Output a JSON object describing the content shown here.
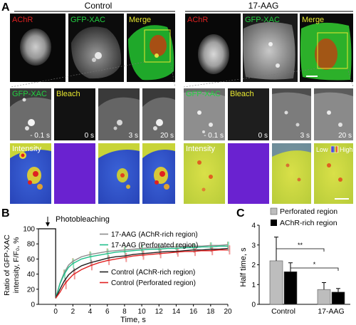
{
  "panel_a": {
    "letter": "A",
    "conditions": [
      "Control",
      "17-AAG"
    ],
    "top_labels": [
      "AChR",
      "GFP-XAC",
      "Merge"
    ],
    "mid_labels": [
      "GFP-XAC",
      "Bleach"
    ],
    "bottom_label": "Intensity",
    "times": [
      "- 0.1 s",
      "0 s",
      "3 s",
      "20 s"
    ],
    "lut_low": "Low",
    "lut_high": "High"
  },
  "panel_b": {
    "letter": "B",
    "annotation": "Photobleaching",
    "chart_data": {
      "type": "line",
      "ylabel_lines": [
        "Ratio of GFP-XAC",
        "intensity, F/F₀, %"
      ],
      "xlabel": "Time, s",
      "xlim": [
        -2,
        20
      ],
      "ylim": [
        0,
        100
      ],
      "xticks": [
        "0",
        "2",
        "4",
        "6",
        "8",
        "10",
        "12",
        "14",
        "16",
        "18",
        "20"
      ],
      "yticks": [
        "0",
        "20",
        "40",
        "60",
        "80",
        "100"
      ],
      "x": [
        0,
        0.5,
        1,
        1.5,
        2,
        3,
        4,
        5,
        6,
        7,
        8,
        9,
        10,
        11,
        12,
        13,
        14,
        15,
        16,
        17,
        18,
        19,
        20
      ],
      "series": [
        {
          "name": "17-AAG (AChR-rich region)",
          "color": "#8c8c8c",
          "err": "#c4ac7a",
          "values": [
            8,
            28,
            42,
            52,
            57,
            63,
            66,
            68,
            70,
            71,
            72,
            73,
            74,
            75,
            75,
            76,
            76,
            77,
            77,
            77,
            78,
            78,
            79
          ]
        },
        {
          "name": "17-AAG (Perforated region)",
          "color": "#1fbf8a",
          "err": "#8fe0bd",
          "values": [
            8,
            27,
            40,
            49,
            54,
            60,
            63,
            65,
            67,
            69,
            70,
            71,
            72,
            73,
            73,
            74,
            74,
            75,
            75,
            76,
            76,
            77,
            77
          ]
        },
        {
          "name": "Control (AChR-rich region)",
          "color": "#222222",
          "err": "#999999",
          "values": [
            8,
            20,
            31,
            39,
            44,
            51,
            55,
            58,
            61,
            63,
            64,
            66,
            67,
            68,
            69,
            70,
            70,
            71,
            72,
            72,
            73,
            73,
            74
          ]
        },
        {
          "name": "Control (Perforated region)",
          "color": "#e02020",
          "err": "#f29a9a",
          "values": [
            8,
            16,
            26,
            33,
            39,
            46,
            51,
            55,
            58,
            60,
            62,
            64,
            65,
            66,
            67,
            68,
            69,
            70,
            70,
            71,
            71,
            72,
            72
          ]
        }
      ]
    }
  },
  "panel_c": {
    "letter": "C",
    "sig1": "**",
    "sig2": "*",
    "chart_data": {
      "type": "bar",
      "categories": [
        "Control",
        "17-AAG"
      ],
      "ylabel": "Half time, s",
      "ylim": [
        0,
        4
      ],
      "yticks": [
        "0",
        "1",
        "2",
        "3",
        "4"
      ],
      "series": [
        {
          "name": "Perforated region",
          "color": "#bdbdbd",
          "values": [
            2.2,
            0.75
          ],
          "errors": [
            1.2,
            0.35
          ]
        },
        {
          "name": "AChR-rich region",
          "color": "#000000",
          "values": [
            1.65,
            0.62
          ],
          "errors": [
            0.45,
            0.18
          ]
        }
      ]
    }
  }
}
